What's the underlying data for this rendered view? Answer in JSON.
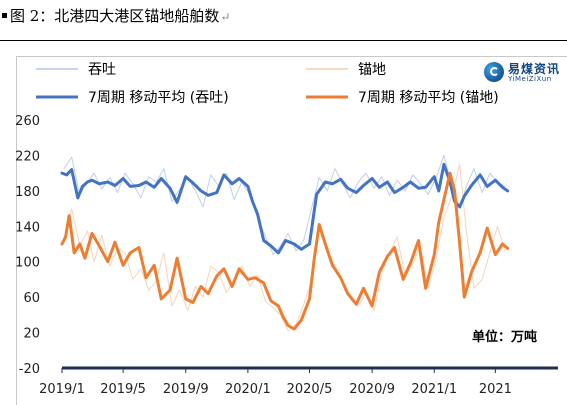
{
  "figure": {
    "caption_label": "图 2：北港四大港区锚地船舶数",
    "return_mark": "↵"
  },
  "logo": {
    "brand_cn": "易煤资讯",
    "brand_en": "YiMeiZiXun"
  },
  "unit_label": "单位：万吨",
  "chart_data": {
    "type": "line",
    "title": "",
    "xlabel": "",
    "ylabel": "",
    "ylim": [
      -20,
      260
    ],
    "yticks": [
      -20,
      20,
      60,
      100,
      140,
      180,
      220,
      260
    ],
    "xlim": [
      "2019-01-01",
      "2021-09-01"
    ],
    "xticks": [
      {
        "label": "2019/1",
        "date": "2019-01-01"
      },
      {
        "label": "2019/5",
        "date": "2019-05-01"
      },
      {
        "label": "2019/9",
        "date": "2019-09-01"
      },
      {
        "label": "2020/1",
        "date": "2020-01-01"
      },
      {
        "label": "2020/5",
        "date": "2020-05-01"
      },
      {
        "label": "2020/9",
        "date": "2020-09-01"
      },
      {
        "label": "2021/1",
        "date": "2021-01-01"
      },
      {
        "label": "2021",
        "date": "2021-05-01"
      }
    ],
    "legend_position": "top",
    "grid": false,
    "series": [
      {
        "name": "吞吐",
        "style": "daily",
        "color": "#b4c7e7",
        "x": [
          "2019-01-05",
          "2019-01-20",
          "2019-02-05",
          "2019-02-20",
          "2019-03-05",
          "2019-03-20",
          "2019-04-05",
          "2019-04-20",
          "2019-05-05",
          "2019-05-20",
          "2019-06-05",
          "2019-06-20",
          "2019-07-05",
          "2019-07-20",
          "2019-08-05",
          "2019-08-20",
          "2019-09-05",
          "2019-09-20",
          "2019-10-05",
          "2019-10-20",
          "2019-11-05",
          "2019-11-20",
          "2019-12-05",
          "2019-12-20",
          "2020-01-05",
          "2020-01-20",
          "2020-02-05",
          "2020-02-20",
          "2020-03-05",
          "2020-03-20",
          "2020-04-05",
          "2020-04-20",
          "2020-05-05",
          "2020-05-20",
          "2020-06-05",
          "2020-06-20",
          "2020-07-05",
          "2020-07-20",
          "2020-08-05",
          "2020-08-20",
          "2020-09-05",
          "2020-09-20",
          "2020-10-05",
          "2020-10-20",
          "2020-11-05",
          "2020-11-20",
          "2020-12-05",
          "2020-12-20",
          "2021-01-05",
          "2021-01-20",
          "2021-02-05",
          "2021-02-20",
          "2021-03-05",
          "2021-03-20",
          "2021-04-05",
          "2021-04-20",
          "2021-05-05",
          "2021-05-20"
        ],
        "values": [
          205,
          218,
          175,
          190,
          200,
          182,
          195,
          178,
          200,
          188,
          172,
          196,
          190,
          205,
          168,
          182,
          195,
          180,
          162,
          198,
          185,
          200,
          170,
          190,
          175,
          150,
          128,
          108,
          118,
          132,
          112,
          125,
          160,
          195,
          180,
          205,
          188,
          172,
          190,
          200,
          183,
          196,
          175,
          192,
          180,
          198,
          188,
          176,
          195,
          220,
          185,
          160,
          185,
          205,
          178,
          200,
          190,
          185
        ]
      },
      {
        "name": "锚地",
        "style": "daily",
        "color": "#f8cbad",
        "x": [
          "2019-01-05",
          "2019-01-20",
          "2019-02-05",
          "2019-02-20",
          "2019-03-05",
          "2019-03-20",
          "2019-04-05",
          "2019-04-20",
          "2019-05-05",
          "2019-05-20",
          "2019-06-05",
          "2019-06-20",
          "2019-07-05",
          "2019-07-20",
          "2019-08-05",
          "2019-08-20",
          "2019-09-05",
          "2019-09-20",
          "2019-10-05",
          "2019-10-20",
          "2019-11-05",
          "2019-11-20",
          "2019-12-05",
          "2019-12-20",
          "2020-01-05",
          "2020-01-20",
          "2020-02-05",
          "2020-02-20",
          "2020-03-05",
          "2020-03-20",
          "2020-04-05",
          "2020-04-20",
          "2020-05-05",
          "2020-05-20",
          "2020-06-05",
          "2020-06-20",
          "2020-07-05",
          "2020-07-20",
          "2020-08-05",
          "2020-08-20",
          "2020-09-05",
          "2020-09-20",
          "2020-10-05",
          "2020-10-20",
          "2020-11-05",
          "2020-11-20",
          "2020-12-05",
          "2020-12-20",
          "2021-01-05",
          "2021-01-20",
          "2021-02-05",
          "2021-02-20",
          "2021-03-05",
          "2021-03-20",
          "2021-04-05",
          "2021-04-20",
          "2021-05-05",
          "2021-05-20"
        ],
        "values": [
          125,
          160,
          118,
          135,
          100,
          130,
          95,
          115,
          110,
          80,
          92,
          68,
          78,
          110,
          50,
          68,
          45,
          72,
          60,
          95,
          88,
          65,
          80,
          95,
          72,
          85,
          55,
          48,
          40,
          22,
          30,
          52,
          78,
          138,
          110,
          95,
          78,
          60,
          50,
          65,
          45,
          88,
          110,
          128,
          85,
          98,
          118,
          70,
          105,
          150,
          175,
          210,
          135,
          70,
          80,
          110,
          140,
          112
        ]
      },
      {
        "name": "7周期 移动平均 (吞吐)",
        "style": "ma",
        "color": "#4472c4",
        "x": [
          "2019-01-01",
          "2019-01-10",
          "2019-01-20",
          "2019-02-01",
          "2019-02-10",
          "2019-02-20",
          "2019-03-01",
          "2019-03-15",
          "2019-04-01",
          "2019-04-15",
          "2019-05-01",
          "2019-05-15",
          "2019-06-01",
          "2019-06-15",
          "2019-07-01",
          "2019-07-15",
          "2019-08-01",
          "2019-08-15",
          "2019-09-01",
          "2019-09-15",
          "2019-10-01",
          "2019-10-15",
          "2019-11-01",
          "2019-11-15",
          "2019-12-01",
          "2019-12-15",
          "2020-01-01",
          "2020-01-10",
          "2020-01-20",
          "2020-02-01",
          "2020-02-15",
          "2020-03-01",
          "2020-03-15",
          "2020-04-01",
          "2020-04-15",
          "2020-05-01",
          "2020-05-15",
          "2020-06-01",
          "2020-06-15",
          "2020-07-01",
          "2020-07-15",
          "2020-08-01",
          "2020-08-15",
          "2020-09-01",
          "2020-09-15",
          "2020-10-01",
          "2020-10-15",
          "2020-11-01",
          "2020-11-15",
          "2020-12-01",
          "2020-12-15",
          "2021-01-01",
          "2021-01-10",
          "2021-01-20",
          "2021-02-01",
          "2021-02-10",
          "2021-02-20",
          "2021-03-01",
          "2021-03-15",
          "2021-04-01",
          "2021-04-15",
          "2021-05-01",
          "2021-05-15",
          "2021-05-25"
        ],
        "values": [
          200,
          198,
          204,
          172,
          185,
          190,
          192,
          188,
          190,
          186,
          194,
          185,
          186,
          190,
          184,
          194,
          183,
          167,
          196,
          189,
          180,
          175,
          178,
          198,
          188,
          194,
          185,
          168,
          154,
          124,
          118,
          110,
          124,
          120,
          114,
          120,
          176,
          190,
          188,
          193,
          183,
          178,
          186,
          194,
          184,
          190,
          178,
          184,
          190,
          183,
          184,
          196,
          180,
          210,
          190,
          168,
          162,
          174,
          186,
          198,
          185,
          192,
          184,
          180
        ]
      },
      {
        "name": "7周期 移动平均 (锚地)",
        "style": "ma",
        "color": "#ed7d31",
        "x": [
          "2019-01-01",
          "2019-01-08",
          "2019-01-15",
          "2019-01-25",
          "2019-02-05",
          "2019-02-15",
          "2019-03-01",
          "2019-03-15",
          "2019-04-01",
          "2019-04-15",
          "2019-05-01",
          "2019-05-15",
          "2019-06-01",
          "2019-06-15",
          "2019-07-01",
          "2019-07-15",
          "2019-08-01",
          "2019-08-15",
          "2019-09-01",
          "2019-09-15",
          "2019-10-01",
          "2019-10-15",
          "2019-11-01",
          "2019-11-15",
          "2019-12-01",
          "2019-12-15",
          "2020-01-01",
          "2020-01-15",
          "2020-02-01",
          "2020-02-15",
          "2020-03-01",
          "2020-03-10",
          "2020-03-20",
          "2020-04-01",
          "2020-04-15",
          "2020-05-01",
          "2020-05-10",
          "2020-05-20",
          "2020-06-01",
          "2020-06-15",
          "2020-07-01",
          "2020-07-15",
          "2020-08-01",
          "2020-08-15",
          "2020-09-01",
          "2020-09-15",
          "2020-10-01",
          "2020-10-15",
          "2020-11-01",
          "2020-11-15",
          "2020-12-01",
          "2020-12-15",
          "2021-01-01",
          "2021-01-10",
          "2021-01-20",
          "2021-02-01",
          "2021-02-10",
          "2021-02-20",
          "2021-03-01",
          "2021-03-15",
          "2021-04-01",
          "2021-04-15",
          "2021-05-01",
          "2021-05-15",
          "2021-05-25"
        ],
        "values": [
          120,
          128,
          152,
          110,
          120,
          104,
          132,
          118,
          100,
          122,
          96,
          110,
          116,
          82,
          96,
          58,
          68,
          104,
          58,
          54,
          72,
          64,
          84,
          92,
          72,
          92,
          80,
          82,
          76,
          56,
          50,
          38,
          28,
          24,
          34,
          58,
          102,
          142,
          120,
          96,
          82,
          64,
          52,
          70,
          50,
          88,
          106,
          116,
          80,
          98,
          124,
          70,
          108,
          145,
          170,
          200,
          180,
          120,
          60,
          88,
          110,
          138,
          108,
          120,
          115
        ]
      }
    ]
  }
}
